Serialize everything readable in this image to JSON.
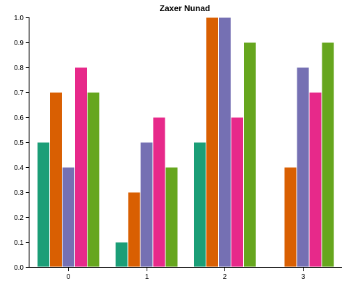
{
  "chart_data": {
    "type": "bar",
    "title": "Zaxer Nunad",
    "xlabel": "",
    "ylabel": "",
    "categories": [
      "0",
      "1",
      "2",
      "3"
    ],
    "ylim": [
      0,
      1.0
    ],
    "yticks": [
      "0.0",
      "0.1",
      "0.2",
      "0.3",
      "0.4",
      "0.5",
      "0.6",
      "0.7",
      "0.8",
      "0.9",
      "1.0"
    ],
    "grid": false,
    "legend": "none",
    "colors": [
      "#1b9e77",
      "#d95f02",
      "#7570b3",
      "#e7298a",
      "#66a61e"
    ],
    "series": [
      {
        "values": [
          0.5,
          0.1,
          0.5,
          0.0
        ]
      },
      {
        "values": [
          0.7,
          0.3,
          1.0,
          0.4
        ]
      },
      {
        "values": [
          0.4,
          0.5,
          1.0,
          0.8
        ]
      },
      {
        "values": [
          0.8,
          0.6,
          0.6,
          0.7
        ]
      },
      {
        "values": [
          0.7,
          0.4,
          0.9,
          0.9
        ]
      }
    ]
  }
}
